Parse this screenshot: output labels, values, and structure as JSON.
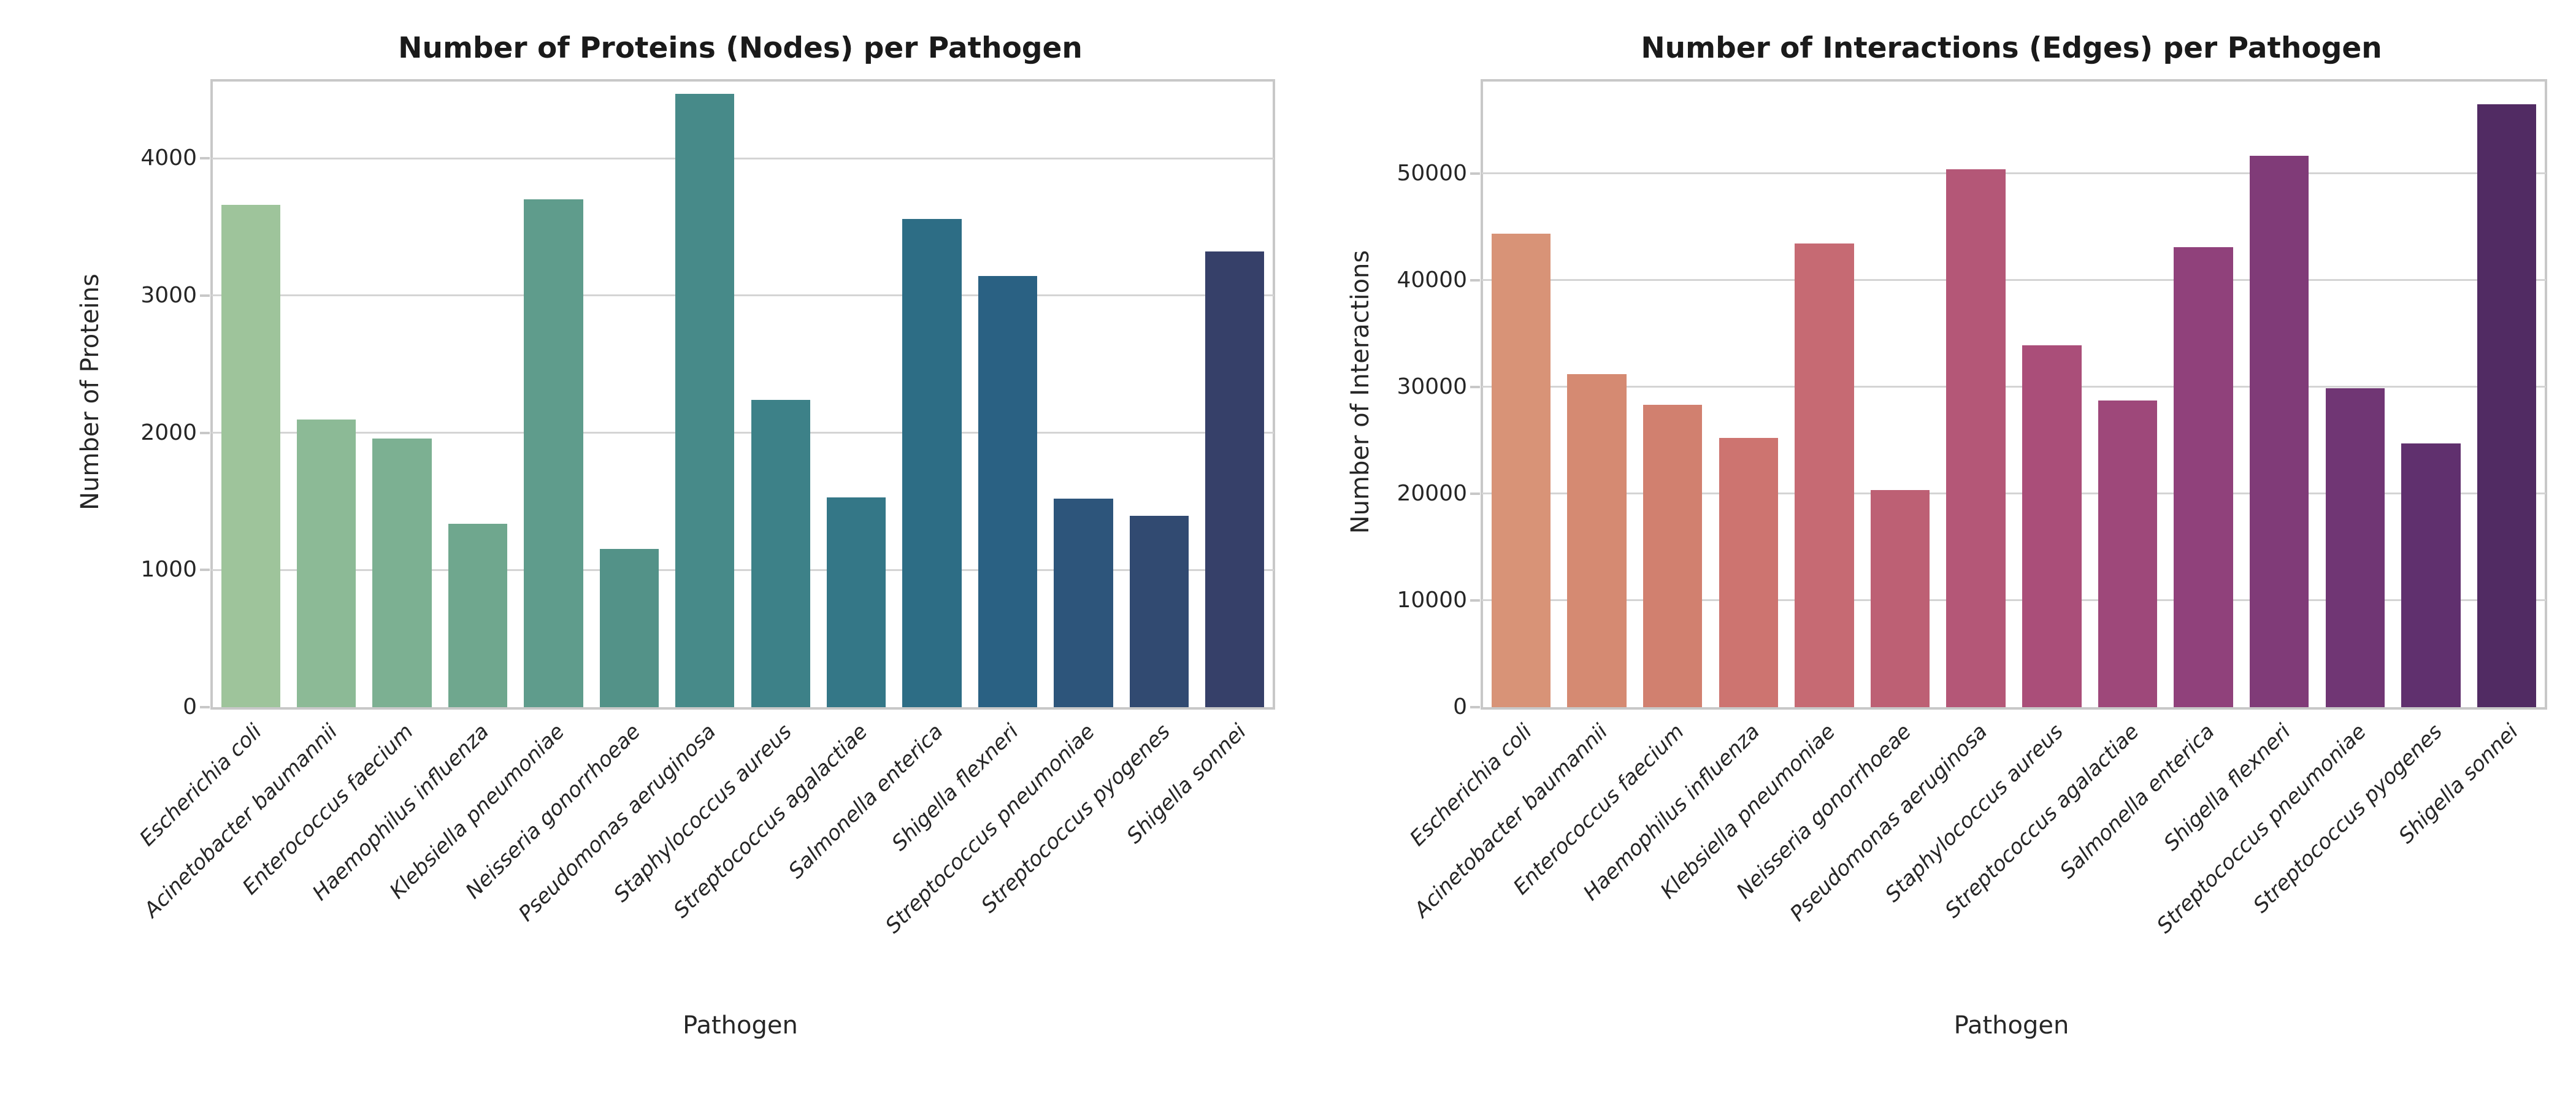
{
  "style": {
    "background": "#ffffff",
    "spine_color": "#c8c8c8",
    "grid_color": "#d4d4d4",
    "tick_color": "#c8c8c8",
    "text_color": "#262626",
    "title_color": "#1a1a1a"
  },
  "chart_data": [
    {
      "type": "bar",
      "title": "Number of Proteins (Nodes) per Pathogen",
      "xlabel": "Pathogen",
      "ylabel": "Number of Proteins",
      "categories": [
        "Escherichia coli",
        "Acinetobacter baumannii",
        "Enterococcus faecium",
        "Haemophilus influenza",
        "Klebsiella pneumoniae",
        "Neisseria gonorrhoeae",
        "Pseudomonas aeruginosa",
        "Staphylococcus aureus",
        "Streptococcus agalactiae",
        "Salmonella enterica",
        "Shigella flexneri",
        "Streptococcus pneumoniae",
        "Streptococcus pyogenes",
        "Shigella sonnei"
      ],
      "values": [
        3660,
        2095,
        1960,
        1335,
        3700,
        1155,
        4470,
        2240,
        1530,
        3560,
        3145,
        1520,
        1395,
        3320
      ],
      "bar_colors": [
        "#9ec49b",
        "#8cba96",
        "#7cb092",
        "#6fa78e",
        "#5f9c8c",
        "#539288",
        "#478a89",
        "#3d8188",
        "#347787",
        "#2d6d85",
        "#2a6183",
        "#2d557b",
        "#314a71",
        "#364069"
      ],
      "palette": "crest (light green to dark navy)",
      "yticks": [
        0,
        1000,
        2000,
        3000,
        4000
      ],
      "ylim": [
        0,
        4560
      ],
      "grid": "horizontal",
      "legend": "none",
      "xtick_style": "italic, rotated 45deg, right-anchored"
    },
    {
      "type": "bar",
      "title": "Number of Interactions (Edges) per Pathogen",
      "xlabel": "Pathogen",
      "ylabel": "Number of Interactions",
      "categories": [
        "Escherichia coli",
        "Acinetobacter baumannii",
        "Enterococcus faecium",
        "Haemophilus influenza",
        "Klebsiella pneumoniae",
        "Neisseria gonorrhoeae",
        "Pseudomonas aeruginosa",
        "Staphylococcus aureus",
        "Streptococcus agalactiae",
        "Salmonella enterica",
        "Shigella flexneri",
        "Streptococcus pneumoniae",
        "Streptococcus pyogenes",
        "Shigella sonnei"
      ],
      "values": [
        44350,
        31200,
        28300,
        25200,
        43450,
        20350,
        50400,
        33900,
        28750,
        43100,
        51650,
        29900,
        24700,
        56500
      ],
      "bar_colors": [
        "#d89377",
        "#d58a72",
        "#d1806f",
        "#cd7470",
        "#c66a73",
        "#bd6074",
        "#b45777",
        "#aa4e79",
        "#9e487a",
        "#90417b",
        "#803b78",
        "#703674",
        "#60306e",
        "#512b63"
      ],
      "palette": "flare (light salmon to dark purple)",
      "yticks": [
        0,
        10000,
        20000,
        30000,
        40000,
        50000
      ],
      "ylim": [
        0,
        58600
      ],
      "grid": "horizontal",
      "legend": "none",
      "xtick_style": "italic, rotated 45deg, right-anchored"
    }
  ]
}
